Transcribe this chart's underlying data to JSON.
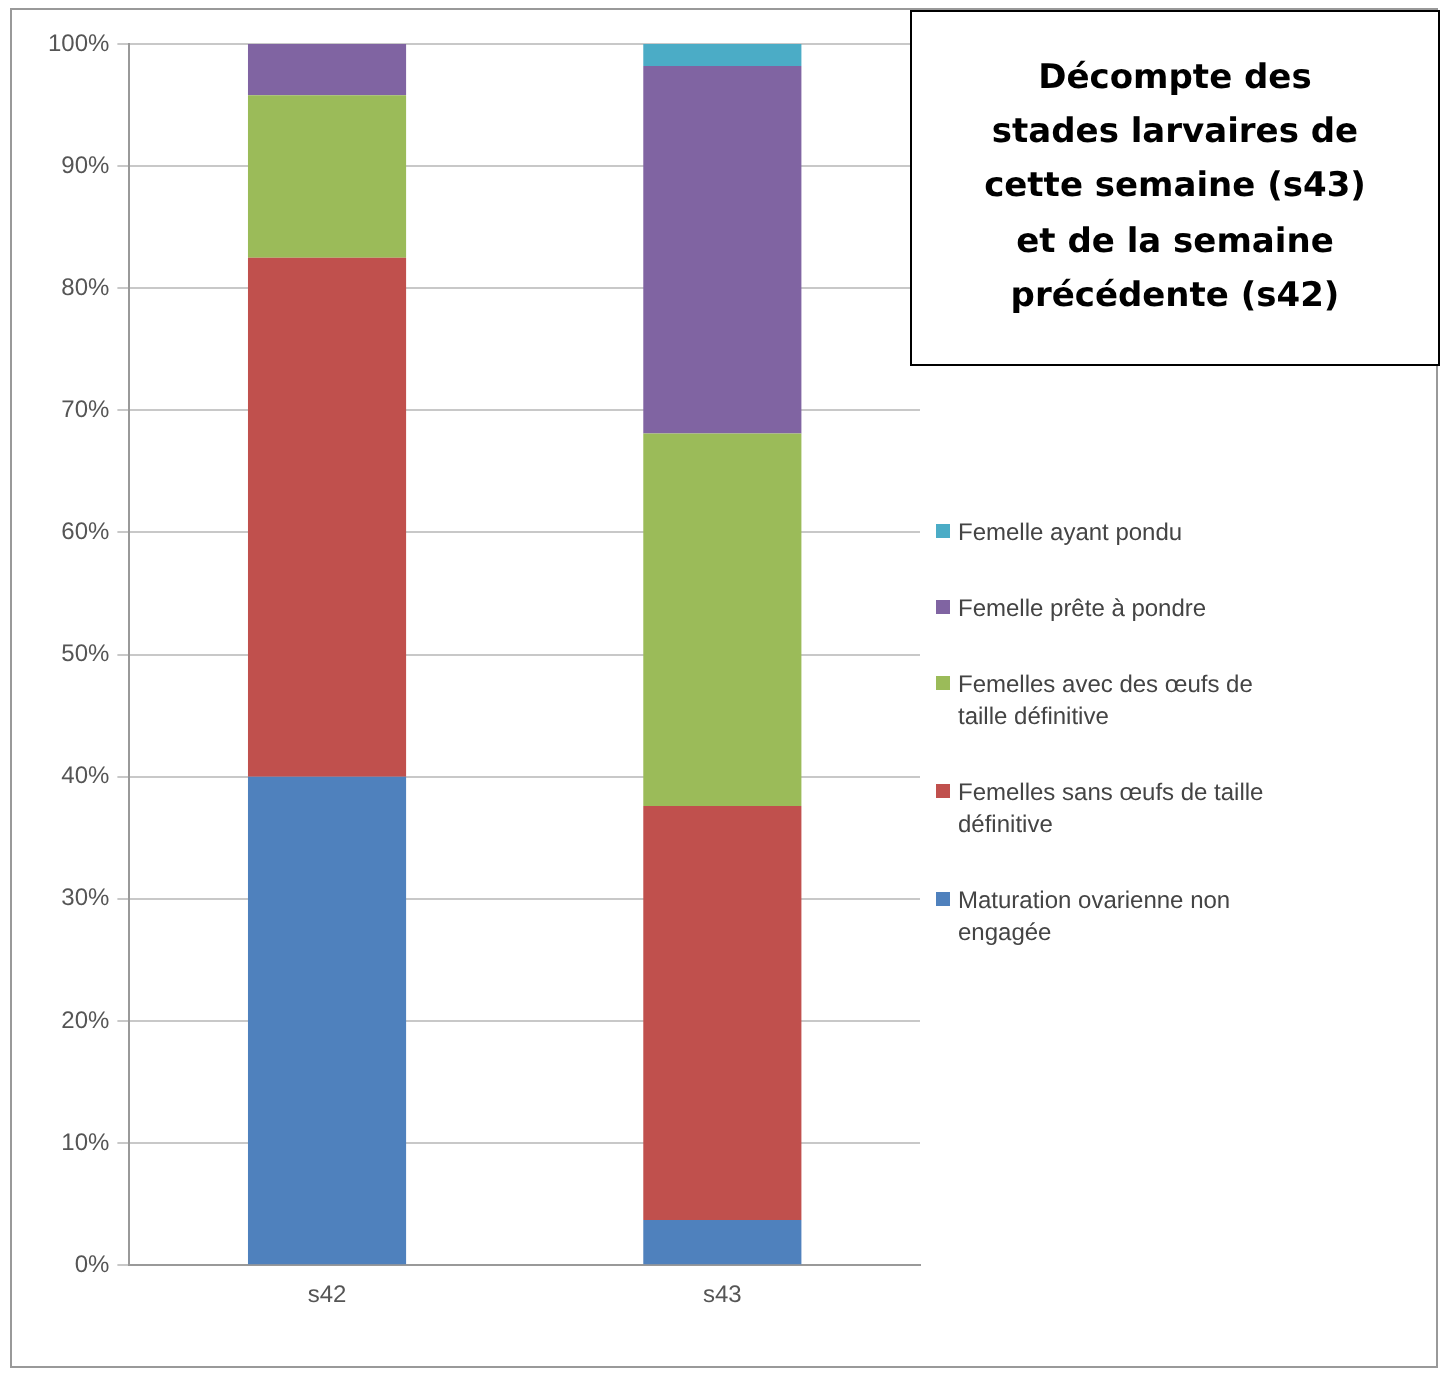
{
  "chart_data": {
    "type": "bar",
    "title": "Décompte des stades larvaires de cette semaine (s43) et de la semaine précédente (s42)",
    "categories": [
      "s42",
      "s43"
    ],
    "stacked": true,
    "grid": "y",
    "legend": "right",
    "ylim": [
      0,
      100
    ],
    "yticks": [
      {
        "value": 0,
        "label": "0%"
      },
      {
        "value": 10,
        "label": "10%"
      },
      {
        "value": 20,
        "label": "20%"
      },
      {
        "value": 30,
        "label": "30%"
      },
      {
        "value": 40,
        "label": "40%"
      },
      {
        "value": 50,
        "label": "50%"
      },
      {
        "value": 60,
        "label": "60%"
      },
      {
        "value": 70,
        "label": "70%"
      },
      {
        "value": 80,
        "label": "80%"
      },
      {
        "value": 90,
        "label": "90%"
      },
      {
        "value": 100,
        "label": "100%"
      }
    ],
    "series": [
      {
        "name": "Maturation ovarienne non engagée",
        "color": "#4f81bd",
        "values": [
          40,
          3.7
        ]
      },
      {
        "name": "Femelles sans œufs de taille définitive",
        "color": "#c0504d",
        "values": [
          42.5,
          33.9
        ]
      },
      {
        "name": "Femelles avec des œufs de taille définitive",
        "color": "#9bbb59",
        "values": [
          13.3,
          30.5
        ]
      },
      {
        "name": "Femelle prête à pondre",
        "color": "#8064a2",
        "values": [
          4.2,
          30.1
        ]
      },
      {
        "name": "Femelle ayant pondu",
        "color": "#4bacc6",
        "values": [
          0,
          1.8
        ]
      }
    ]
  }
}
